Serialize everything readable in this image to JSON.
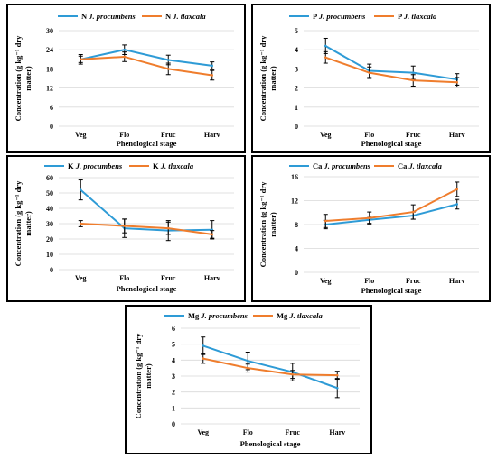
{
  "colors": {
    "series_a": "#2e9bd6",
    "series_b": "#ef7d2d",
    "error_bar": "#000000",
    "grid": "#d9d9d9"
  },
  "chart_data": [
    {
      "id": "N",
      "type": "line",
      "categories": [
        "Veg",
        "Flo",
        "Fruc",
        "Harv"
      ],
      "xlabel": "Phenological stage",
      "ylabel": "Concentration (g kg⁻¹ dry matter)",
      "ylim": [
        0,
        30
      ],
      "yticks": [
        0,
        6,
        12,
        18,
        24,
        30
      ],
      "grid": true,
      "legend": "top",
      "series": [
        {
          "name": "N J. procumbens",
          "values": [
            21.0,
            24.0,
            20.8,
            19.0
          ],
          "errors": [
            1.5,
            1.5,
            1.5,
            1.2
          ]
        },
        {
          "name": "N J. tlaxcala",
          "values": [
            21.0,
            21.8,
            18.0,
            16.0
          ],
          "errors": [
            1.0,
            1.5,
            1.8,
            1.5
          ]
        }
      ]
    },
    {
      "id": "P",
      "type": "line",
      "categories": [
        "Veg",
        "Flo",
        "Fruc",
        "Harv"
      ],
      "xlabel": "Phenological stage",
      "ylabel": "Concentration (g kg⁻¹ dry matter)",
      "ylim": [
        0,
        5
      ],
      "yticks": [
        0,
        1,
        2,
        3,
        4,
        5
      ],
      "grid": true,
      "legend": "top",
      "series": [
        {
          "name": "P J. procumbens",
          "values": [
            4.2,
            2.9,
            2.8,
            2.45
          ],
          "errors": [
            0.4,
            0.35,
            0.35,
            0.3
          ]
        },
        {
          "name": "P J. tlaxcala",
          "values": [
            3.6,
            2.8,
            2.4,
            2.3
          ],
          "errors": [
            0.3,
            0.3,
            0.3,
            0.25
          ]
        }
      ]
    },
    {
      "id": "K",
      "type": "line",
      "categories": [
        "Veg",
        "Flo",
        "Fruc",
        "Harv"
      ],
      "xlabel": "Phenological stage",
      "ylabel": "Concentration (g kg⁻¹ dry matter)",
      "ylim": [
        0,
        60
      ],
      "yticks": [
        0,
        10,
        20,
        30,
        40,
        50,
        60
      ],
      "grid": true,
      "legend": "top",
      "series": [
        {
          "name": "K J. procumbens",
          "values": [
            52.0,
            27.0,
            25.5,
            26.0
          ],
          "errors": [
            6.5,
            6.0,
            6.5,
            6.0
          ]
        },
        {
          "name": "K J. tlaxcala",
          "values": [
            30.0,
            28.5,
            27.0,
            23.0
          ],
          "errors": [
            2.0,
            4.5,
            4.0,
            2.5
          ]
        }
      ]
    },
    {
      "id": "Ca",
      "type": "line",
      "categories": [
        "Veg",
        "Flo",
        "Fruc",
        "Harv"
      ],
      "xlabel": "Phenological stage",
      "ylabel": "Concentration (g kg⁻¹ dry matter)",
      "ylim": [
        0,
        16
      ],
      "yticks": [
        0,
        4,
        8,
        12,
        16
      ],
      "grid": true,
      "legend": "top",
      "series": [
        {
          "name": "Ca J. procumbens",
          "values": [
            8.0,
            8.8,
            9.5,
            11.4
          ],
          "errors": [
            0.7,
            0.6,
            0.6,
            0.8
          ]
        },
        {
          "name": "Ca J. tlaxcala",
          "values": [
            8.6,
            9.1,
            10.1,
            13.9
          ],
          "errors": [
            1.1,
            1.0,
            1.2,
            1.2
          ]
        }
      ]
    },
    {
      "id": "Mg",
      "type": "line",
      "categories": [
        "Veg",
        "Flo",
        "Fruc",
        "Harv"
      ],
      "xlabel": "Phenological stage",
      "ylabel": "Concentration (g kg⁻¹ dry matter)",
      "ylim": [
        0,
        6
      ],
      "yticks": [
        0,
        1,
        2,
        3,
        4,
        5,
        6
      ],
      "grid": true,
      "legend": "top",
      "series": [
        {
          "name": "Mg J. procumbens",
          "values": [
            4.9,
            3.95,
            3.25,
            2.25
          ],
          "errors": [
            0.55,
            0.55,
            0.55,
            0.6
          ]
        },
        {
          "name": "Mg J. tlaxcala",
          "values": [
            4.1,
            3.5,
            3.1,
            3.05
          ],
          "errors": [
            0.3,
            0.25,
            0.25,
            0.25
          ]
        }
      ]
    }
  ]
}
